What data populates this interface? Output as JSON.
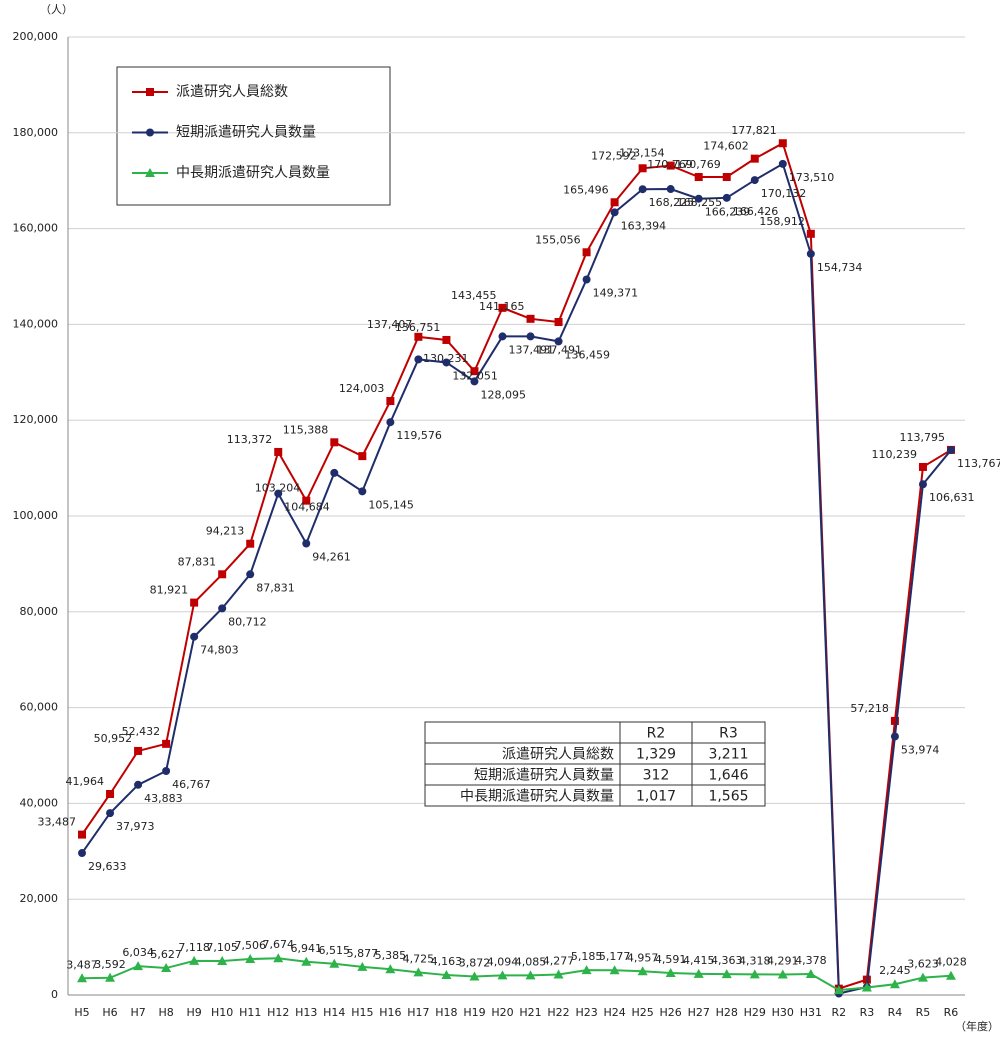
{
  "chart_data": {
    "type": "line",
    "y_unit": "（人）",
    "x_unit": "（年度）",
    "categories": [
      "H5",
      "H6",
      "H7",
      "H8",
      "H9",
      "H10",
      "H11",
      "H12",
      "H13",
      "H14",
      "H15",
      "H16",
      "H17",
      "H18",
      "H19",
      "H20",
      "H21",
      "H22",
      "H23",
      "H24",
      "H25",
      "H26",
      "H27",
      "H28",
      "H29",
      "H30",
      "H31",
      "R2",
      "R3",
      "R4",
      "R5",
      "R6"
    ],
    "ylim": [
      0,
      200000
    ],
    "yticks": [
      0,
      {
        "value": 20000,
        "label": "20,000"
      },
      {
        "value": 40000,
        "label": "40,000"
      },
      {
        "value": 60000,
        "label": "60,000"
      },
      {
        "value": 80000,
        "label": "80,000"
      },
      {
        "value": 100000,
        "label": "100,000"
      },
      {
        "value": 120000,
        "label": "120,000"
      },
      {
        "value": 140000,
        "label": "140,000"
      },
      {
        "value": 160000,
        "label": "160,000"
      },
      {
        "value": 180000,
        "label": "180,000"
      },
      {
        "value": 200000,
        "label": "200,000"
      }
    ],
    "grid": true,
    "series": [
      {
        "name": "派遣研究人員総数",
        "color": "#c00000",
        "marker": "square",
        "values": [
          33487,
          41964,
          50952,
          52432,
          81921,
          87831,
          94213,
          113372,
          103204,
          115388,
          112500,
          124003,
          137407,
          136751,
          130231,
          143455,
          141165,
          140500,
          155056,
          165496,
          172592,
          173154,
          170769,
          170769,
          174602,
          177821,
          158912,
          1329,
          3211,
          57218,
          110239,
          113795
        ],
        "value_labels": [
          "33,487",
          "41,964",
          "50,952",
          "52,432",
          "81,921",
          "87,831",
          "94,213",
          "113,372",
          "103,204",
          "115,388",
          null,
          "124,003",
          "137,407",
          "136,751",
          "130,231",
          "143,455",
          "141,165",
          null,
          "155,056",
          "165,496",
          "172,592",
          "173,154",
          "170,769",
          "170,769",
          "174,602",
          "177,821",
          "158,912",
          null,
          null,
          "57,218",
          "110,239",
          "113,795"
        ]
      },
      {
        "name": "短期派遣研究人員数量",
        "color": "#1f2d6b",
        "marker": "circle",
        "values": [
          29633,
          37973,
          43883,
          46767,
          74803,
          80712,
          87831,
          104684,
          94261,
          109000,
          105145,
          119576,
          132700,
          132051,
          128095,
          137491,
          137491,
          136459,
          149371,
          163394,
          168225,
          168255,
          166239,
          166426,
          170132,
          173510,
          154734,
          312,
          1646,
          53974,
          106631,
          113767
        ],
        "value_labels": [
          "29,633",
          "37,973",
          "43,883",
          "46,767",
          "74,803",
          "80,712",
          "87,831",
          "104,684",
          "94,261",
          null,
          "105,145",
          "119,576",
          null,
          "132,051",
          "128,095",
          "137,491",
          "137,491",
          "136,459",
          "149,371",
          "163,394",
          "168,225",
          "168,255",
          "166,239",
          "166,426",
          "170,132",
          "173,510",
          "154,734",
          null,
          null,
          "53,974",
          "106,631",
          "113,767"
        ]
      },
      {
        "name": "中長期派遣研究人員数量",
        "color": "#2db34a",
        "marker": "triangle",
        "values": [
          3487,
          3592,
          6034,
          5627,
          7118,
          7105,
          7506,
          7674,
          6941,
          6515,
          5877,
          5385,
          4725,
          4163,
          3872,
          4094,
          4085,
          4277,
          5185,
          5177,
          4957,
          4591,
          4415,
          4363,
          4318,
          4291,
          4378,
          1017,
          1565,
          2245,
          3623,
          4028
        ],
        "value_labels": [
          "3,487",
          "3,592",
          "6,034",
          "5,627",
          "7,118",
          "7,105",
          "7,506",
          "7,674",
          "6,941",
          "6,515",
          "5,877",
          "5,385",
          "4,725",
          "4,163",
          "3,872",
          "4,094",
          "4,085",
          "4,277",
          "5,185",
          "5,177",
          "4,957",
          "4,591",
          "4,415",
          "4,363",
          "4,318",
          "4,291",
          "4,378",
          null,
          null,
          "2,245",
          "3,623",
          "4,028"
        ]
      }
    ],
    "table": {
      "columns": [
        "R2",
        "R3"
      ],
      "rows": [
        {
          "label": "派遣研究人員総数",
          "cells": [
            "1,329",
            "3,211"
          ]
        },
        {
          "label": "短期派遣研究人員数量",
          "cells": [
            "312",
            "1,646"
          ]
        },
        {
          "label": "中長期派遣研究人員数量",
          "cells": [
            "1,017",
            "1,565"
          ]
        }
      ]
    }
  }
}
